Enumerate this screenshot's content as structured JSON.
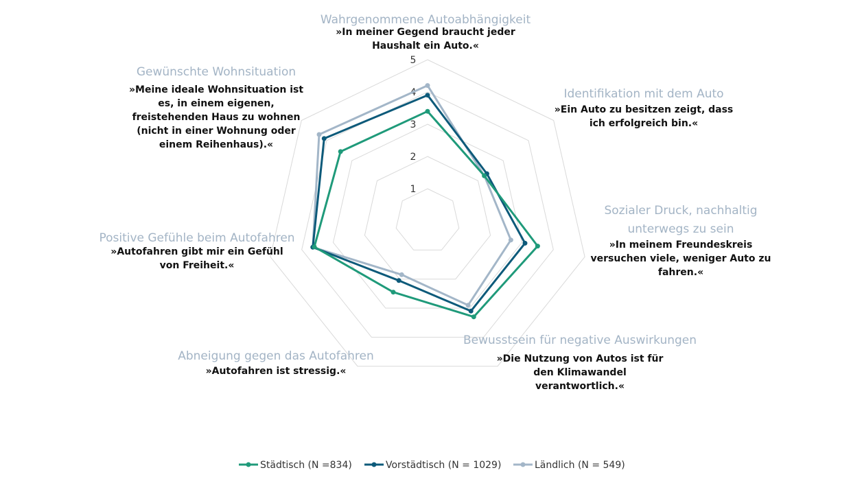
{
  "chart_data": {
    "type": "radar",
    "rlim": [
      0,
      5
    ],
    "ticks": [
      "1",
      "2",
      "3",
      "4",
      "5"
    ],
    "grid": true,
    "legend_position": "bottom",
    "categories": [
      {
        "title": "Wahrgenommene Autoabhängigkeit",
        "quote": [
          "»In meiner Gegend braucht jeder",
          "Haushalt ein Auto.«"
        ]
      },
      {
        "title": "Identifikation mit dem Auto",
        "quote": [
          "»Ein Auto zu besitzen zeigt, dass",
          "ich erfolgreich bin.«"
        ]
      },
      {
        "title": "Sozialer Druck, nachhaltig unterwegs zu sein",
        "quote": [
          "»In meinem Freundeskreis",
          "versuchen viele, weniger Auto zu",
          "fahren.«"
        ]
      },
      {
        "title": "Bewusstsein für negative Auswirkungen",
        "quote": [
          "»Die Nutzung von Autos ist für",
          "den Klimawandel",
          "verantwortlich.«"
        ]
      },
      {
        "title": "Abneigung gegen das Autofahren",
        "quote": [
          "»Autofahren ist stressig.«"
        ]
      },
      {
        "title": "Positive Gefühle beim Autofahren",
        "quote": [
          "»Autofahren gibt mir ein Gefühl",
          "von Freiheit.«"
        ]
      },
      {
        "title": "Gewünschte Wohnsituation",
        "quote": [
          "»Meine ideale Wohnsituation ist",
          "es, in einem eigenen,",
          "freistehenden Haus zu wohnen",
          "(nicht in einer Wohnung oder",
          "einem Reihenhaus).«"
        ]
      }
    ],
    "series": [
      {
        "name": "Städtisch (N =834)",
        "color": "#1f9a7a",
        "values": [
          3.4,
          2.25,
          3.5,
          3.3,
          2.45,
          3.6,
          3.45
        ]
      },
      {
        "name": "Vorstädtisch (N = 1029)",
        "color": "#0d5a7a",
        "values": [
          3.9,
          2.35,
          3.1,
          3.1,
          2.05,
          3.65,
          4.1
        ]
      },
      {
        "name": "Ländlich (N = 549)",
        "color": "#a3b6c8",
        "values": [
          4.2,
          2.25,
          2.65,
          2.9,
          1.85,
          3.65,
          4.3
        ]
      }
    ]
  }
}
